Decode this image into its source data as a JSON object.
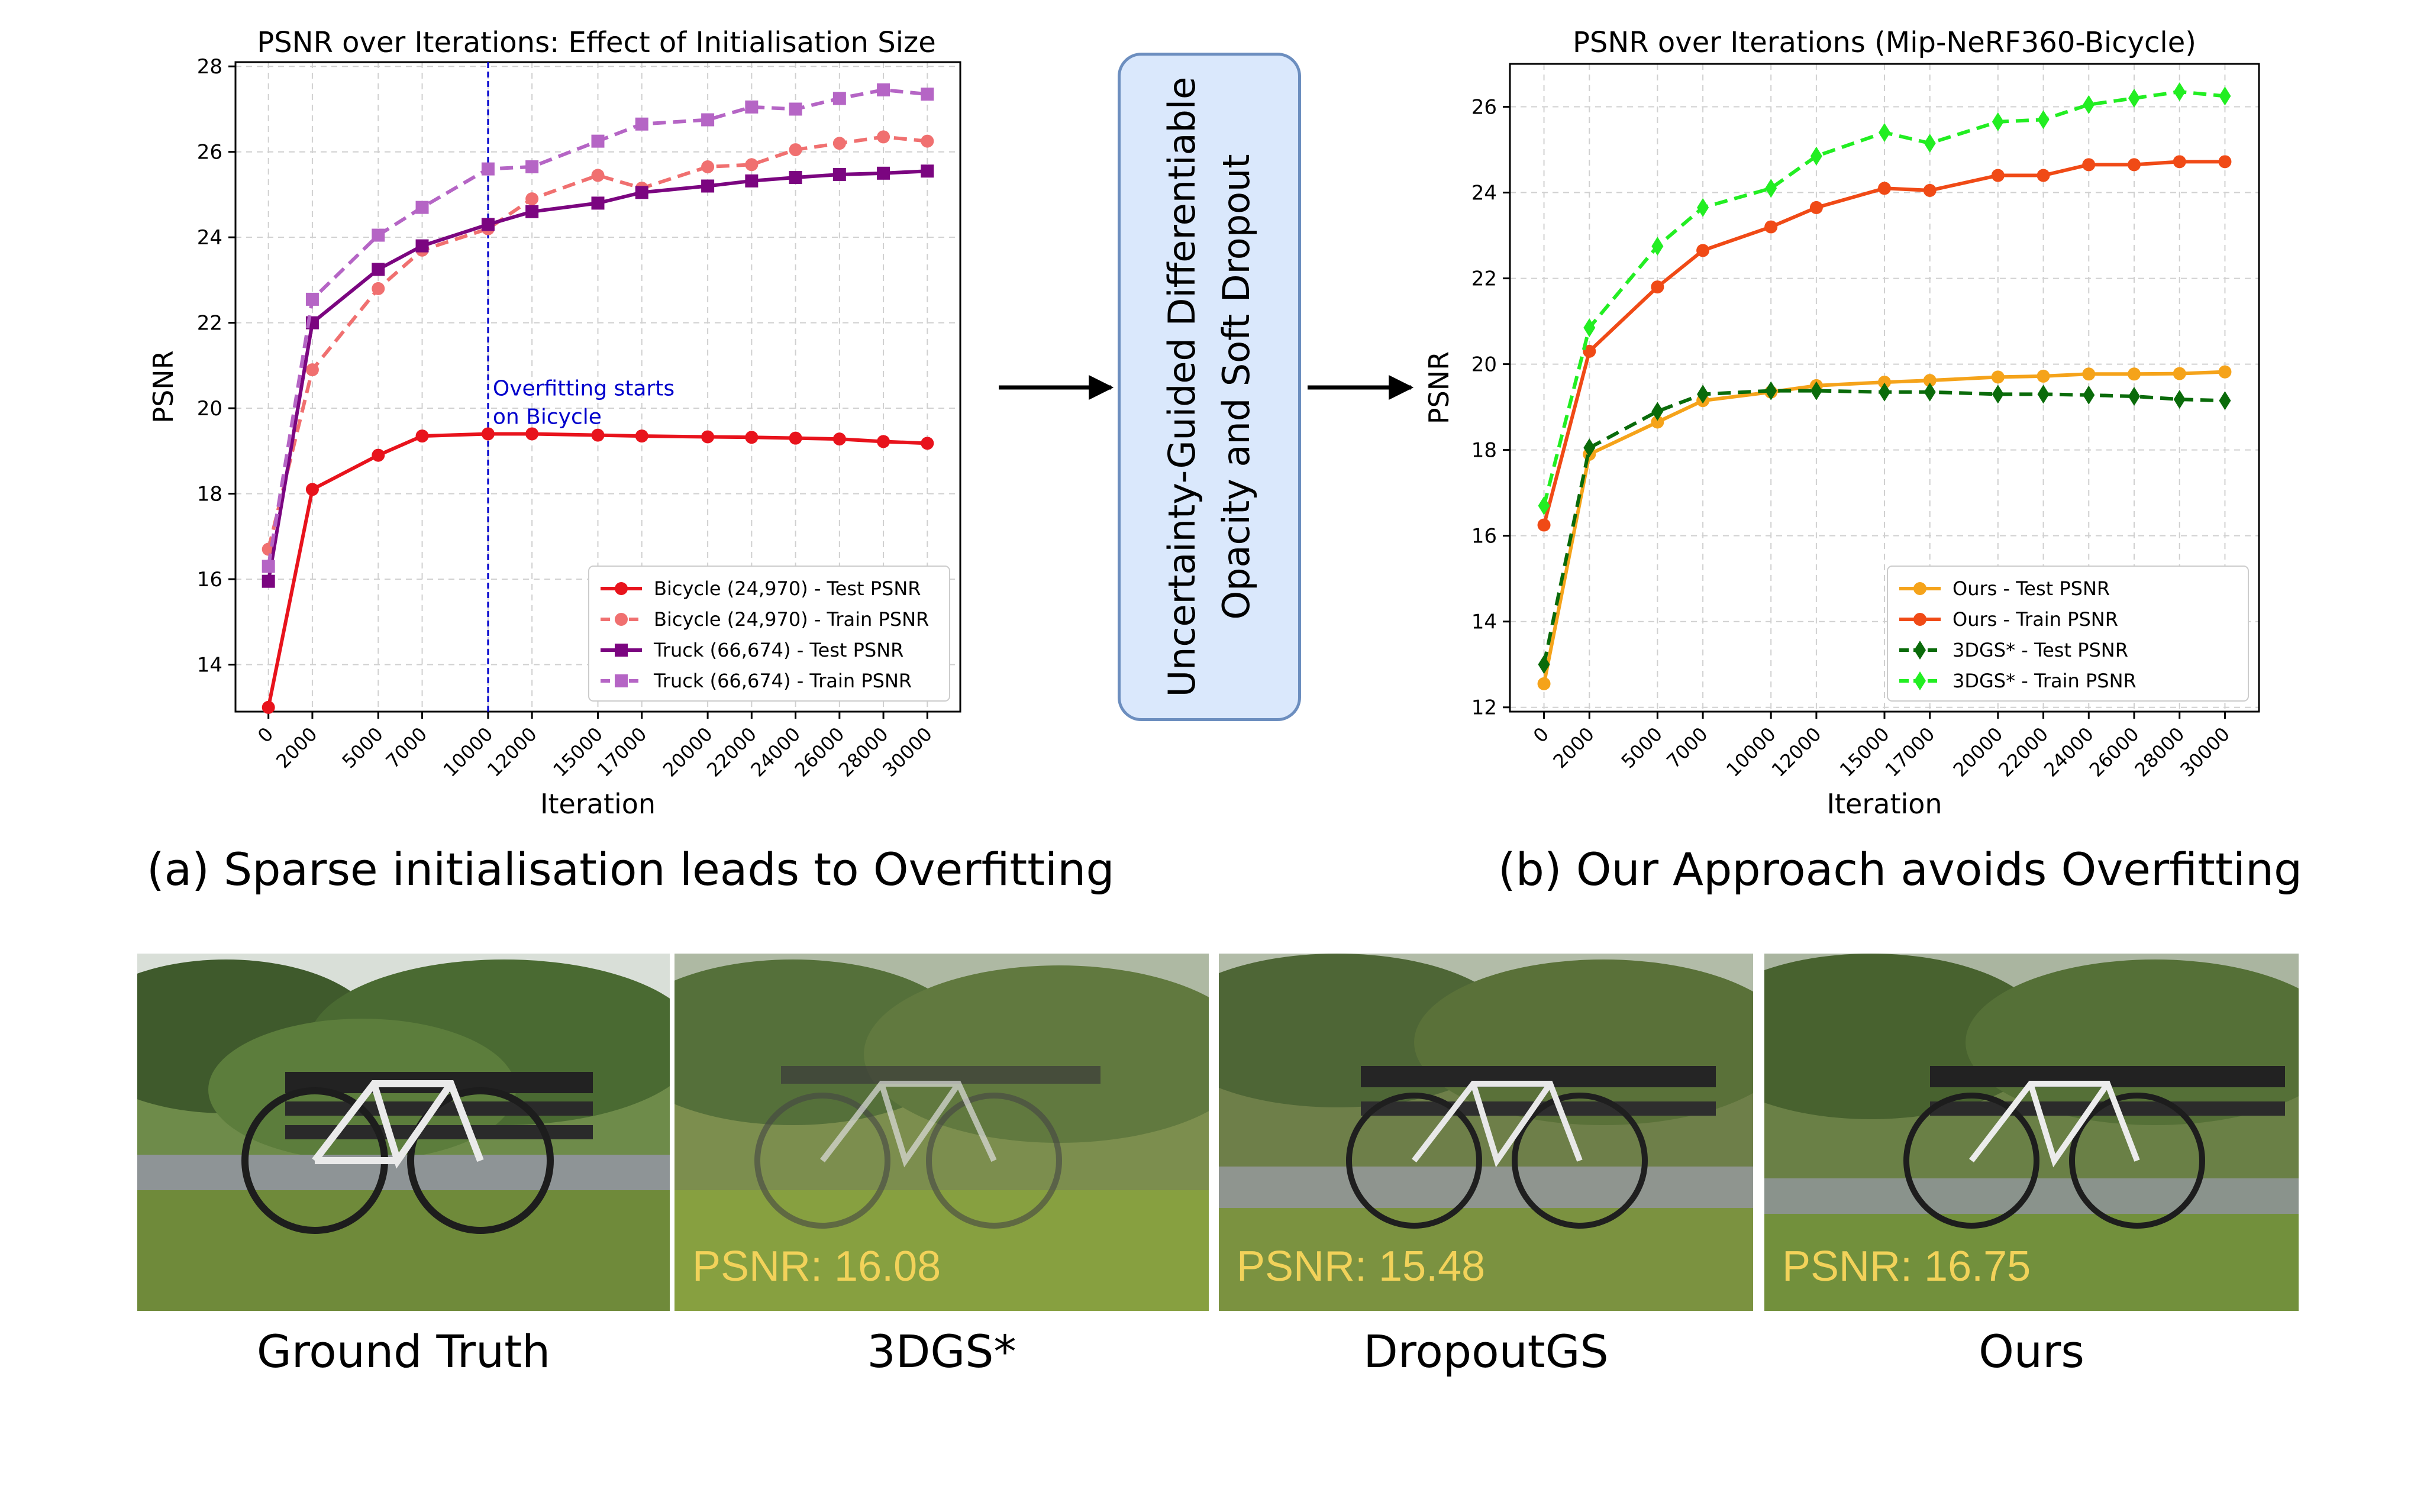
{
  "chart_data": [
    {
      "type": "line",
      "title": "PSNR over Iterations: Effect of Initialisation Size",
      "xlabel": "Iteration",
      "ylabel": "PSNR",
      "x": [
        0,
        2000,
        5000,
        7000,
        10000,
        12000,
        15000,
        17000,
        20000,
        22000,
        24000,
        26000,
        28000,
        30000
      ],
      "ylim": [
        12.9,
        28.1
      ],
      "yticks": [
        14,
        16,
        18,
        20,
        22,
        24,
        26,
        28
      ],
      "grid": true,
      "legend": "bottom-right",
      "series": [
        {
          "name": "Bicycle (24,970) - Test PSNR",
          "color": "#e8131c",
          "dashed": false,
          "marker": "circle",
          "values": [
            13.0,
            18.1,
            18.9,
            19.35,
            19.4,
            19.4,
            19.37,
            19.35,
            19.33,
            19.32,
            19.3,
            19.28,
            19.22,
            19.18
          ]
        },
        {
          "name": "Bicycle (24,970) - Train PSNR",
          "color": "#f07070",
          "dashed": true,
          "marker": "circle",
          "values": [
            16.7,
            20.9,
            22.8,
            23.7,
            24.2,
            24.9,
            25.45,
            25.15,
            25.65,
            25.7,
            26.05,
            26.2,
            26.35,
            26.25
          ]
        },
        {
          "name": "Truck (66,674) - Test PSNR",
          "color": "#7b0580",
          "dashed": false,
          "marker": "square",
          "values": [
            15.95,
            22.0,
            23.25,
            23.8,
            24.3,
            24.6,
            24.8,
            25.05,
            25.2,
            25.32,
            25.4,
            25.47,
            25.5,
            25.55
          ]
        },
        {
          "name": "Truck (66,674) - Train PSNR",
          "color": "#b565c5",
          "dashed": true,
          "marker": "square",
          "values": [
            16.3,
            22.55,
            24.05,
            24.7,
            25.6,
            25.65,
            26.25,
            26.65,
            26.75,
            27.05,
            27.0,
            27.25,
            27.45,
            27.35
          ]
        }
      ],
      "annotation": {
        "x": 10000,
        "lines": [
          "Overfitting starts",
          "on Bicycle"
        ],
        "color": "#0000cc"
      }
    },
    {
      "type": "line",
      "title": "PSNR over Iterations (Mip-NeRF360-Bicycle)",
      "xlabel": "Iteration",
      "ylabel": "PSNR",
      "x": [
        0,
        2000,
        5000,
        7000,
        10000,
        12000,
        15000,
        17000,
        20000,
        22000,
        24000,
        26000,
        28000,
        30000
      ],
      "ylim": [
        11.9,
        27.0
      ],
      "yticks": [
        12,
        14,
        16,
        18,
        20,
        22,
        24,
        26
      ],
      "grid": true,
      "legend": "bottom-right",
      "series": [
        {
          "name": "Ours - Test PSNR",
          "color": "#f5a31a",
          "dashed": false,
          "marker": "circle",
          "values": [
            12.55,
            17.9,
            18.65,
            19.15,
            19.35,
            19.5,
            19.58,
            19.62,
            19.7,
            19.72,
            19.77,
            19.77,
            19.78,
            19.82
          ]
        },
        {
          "name": "Ours - Train PSNR",
          "color": "#f04a16",
          "dashed": false,
          "marker": "circle",
          "values": [
            16.25,
            20.3,
            21.8,
            22.65,
            23.2,
            23.65,
            24.1,
            24.05,
            24.4,
            24.4,
            24.65,
            24.65,
            24.72,
            24.72
          ]
        },
        {
          "name": "3DGS* - Test PSNR",
          "color": "#0a6b0a",
          "dashed": true,
          "marker": "diamond",
          "values": [
            13.0,
            18.05,
            18.9,
            19.3,
            19.38,
            19.38,
            19.35,
            19.35,
            19.3,
            19.3,
            19.28,
            19.25,
            19.18,
            19.15
          ]
        },
        {
          "name": "3DGS* - Train PSNR",
          "color": "#22ee22",
          "dashed": true,
          "marker": "diamond",
          "values": [
            16.7,
            20.85,
            22.75,
            23.65,
            24.1,
            24.85,
            25.4,
            25.15,
            25.65,
            25.7,
            26.05,
            26.2,
            26.35,
            26.25
          ]
        }
      ]
    }
  ],
  "middle": {
    "lines": [
      "Uncertainty-Guided Differentiable",
      "Opacity and Soft Dropout"
    ]
  },
  "captions": {
    "a": "(a) Sparse initialisation leads to Overfitting",
    "b": "(b) Our Approach avoids Overfitting"
  },
  "thumbnails": [
    {
      "label": "Ground Truth",
      "psnr": ""
    },
    {
      "label": "3DGS*",
      "psnr": "PSNR: 16.08"
    },
    {
      "label": "DropoutGS",
      "psnr": "PSNR: 15.48"
    },
    {
      "label": "Ours",
      "psnr": "PSNR: 16.75"
    }
  ]
}
